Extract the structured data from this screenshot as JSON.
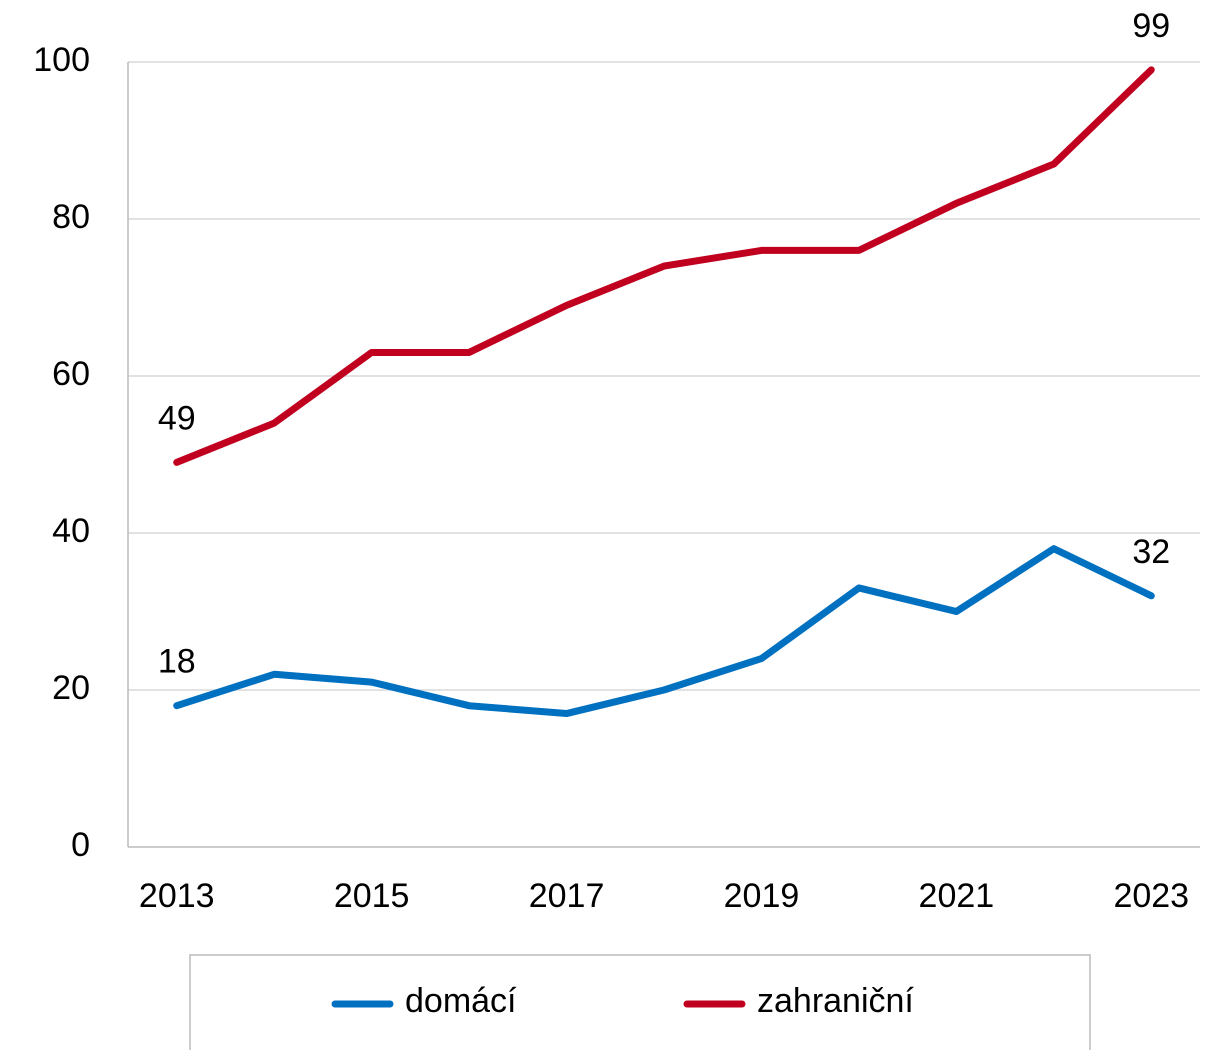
{
  "chart_data": {
    "type": "line",
    "x": [
      2013,
      2014,
      2015,
      2016,
      2017,
      2018,
      2019,
      2020,
      2021,
      2022,
      2023
    ],
    "series": [
      {
        "name": "domácí",
        "color": "#0070c0",
        "values": [
          18,
          22,
          21,
          18,
          17,
          20,
          24,
          33,
          30,
          38,
          32
        ]
      },
      {
        "name": "zahraniční",
        "color": "#c0001e",
        "values": [
          49,
          54,
          63,
          63,
          69,
          74,
          76,
          76,
          82,
          87,
          99
        ]
      }
    ],
    "xlim": [
      2012.5,
      2023.5
    ],
    "xticks": [
      2013,
      2015,
      2017,
      2019,
      2021,
      2023
    ],
    "ylim": [
      0,
      100
    ],
    "yticks": [
      0,
      20,
      40,
      60,
      80,
      100
    ],
    "grid": true,
    "legend": "bottom"
  }
}
